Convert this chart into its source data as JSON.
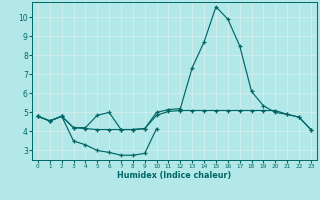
{
  "xlabel": "Humidex (Indice chaleur)",
  "bg_color": "#b3e8e8",
  "line_color": "#006666",
  "grid_color": "#d0ecec",
  "xlim": [
    -0.5,
    23.5
  ],
  "ylim": [
    2.5,
    10.8
  ],
  "yticks": [
    3,
    4,
    5,
    6,
    7,
    8,
    9,
    10
  ],
  "xticks": [
    0,
    1,
    2,
    3,
    4,
    5,
    6,
    7,
    8,
    9,
    10,
    11,
    12,
    13,
    14,
    15,
    16,
    17,
    18,
    19,
    20,
    21,
    22,
    23
  ],
  "curve1_x": [
    0,
    1,
    2,
    3,
    4,
    5,
    6,
    7,
    8,
    9,
    10,
    11,
    12,
    13,
    14,
    15,
    16,
    17,
    18,
    19,
    20,
    21,
    22,
    23
  ],
  "curve1_y": [
    4.8,
    4.55,
    4.8,
    4.2,
    4.2,
    4.85,
    5.0,
    4.1,
    4.1,
    4.15,
    5.0,
    5.15,
    5.2,
    7.35,
    8.7,
    10.55,
    9.9,
    8.5,
    6.1,
    5.35,
    5.0,
    4.9,
    4.75,
    4.1
  ],
  "curve2_x": [
    0,
    1,
    2,
    3,
    4,
    5,
    6,
    7,
    8,
    9,
    10,
    11,
    12,
    13,
    14,
    15,
    16,
    17,
    18,
    19,
    20,
    21,
    22,
    23
  ],
  "curve2_y": [
    4.8,
    4.55,
    4.8,
    4.2,
    4.15,
    4.1,
    4.1,
    4.1,
    4.1,
    4.15,
    4.85,
    5.05,
    5.1,
    5.1,
    5.1,
    5.1,
    5.1,
    5.1,
    5.1,
    5.1,
    5.1,
    4.9,
    4.75,
    4.1
  ],
  "curve3_x": [
    0,
    1,
    2,
    3,
    4,
    5,
    6,
    7,
    8,
    9,
    10
  ],
  "curve3_y": [
    4.8,
    4.55,
    4.8,
    3.5,
    3.3,
    3.0,
    2.9,
    2.75,
    2.75,
    2.85,
    4.15
  ]
}
